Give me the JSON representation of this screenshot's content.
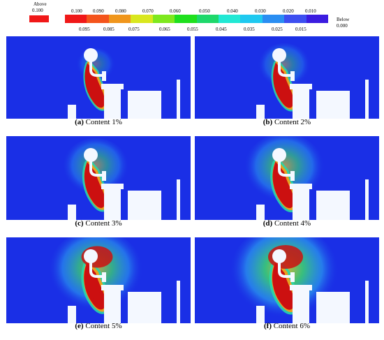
{
  "legend": {
    "above_label": "Above",
    "above_value": "0.100",
    "above_color": "#f01818",
    "below_label": "Below",
    "below_value": "0.000",
    "swatch_colors": [
      "#f01818",
      "#f4541c",
      "#f0961c",
      "#d9e71e",
      "#7ee81e",
      "#1fe01e",
      "#1ed86b",
      "#21e8d4",
      "#1fc9f0",
      "#2a8ef2",
      "#3d4ff0",
      "#3b1ce0"
    ],
    "top_labels": [
      "0.100",
      "0.090",
      "0.080",
      "0.070",
      "0.060",
      "0.050",
      "0.040",
      "0.030",
      "0.020",
      "0.010"
    ],
    "bottom_labels": [
      "0.095",
      "0.085",
      "0.075",
      "0.065",
      "0.055",
      "0.045",
      "0.035",
      "0.025",
      "0.015"
    ]
  },
  "panels": [
    {
      "letter": "(a)",
      "caption": "Content 1%",
      "content_percent": 1
    },
    {
      "letter": "(b)",
      "caption": "Content 2%",
      "content_percent": 2
    },
    {
      "letter": "(c)",
      "caption": "Content 3%",
      "content_percent": 3
    },
    {
      "letter": "(d)",
      "caption": "Content 4%",
      "content_percent": 4
    },
    {
      "letter": "(e)",
      "caption": "Content 5%",
      "content_percent": 5
    },
    {
      "letter": "(f)",
      "caption": "Content 6%",
      "content_percent": 6
    }
  ],
  "colors": {
    "background_field": "#1a2fe6",
    "obstacle": "#f4f8ff",
    "plume_core": "#cc1010",
    "plume_mid": "#e8a020",
    "plume_edge": "#28d8a8"
  }
}
